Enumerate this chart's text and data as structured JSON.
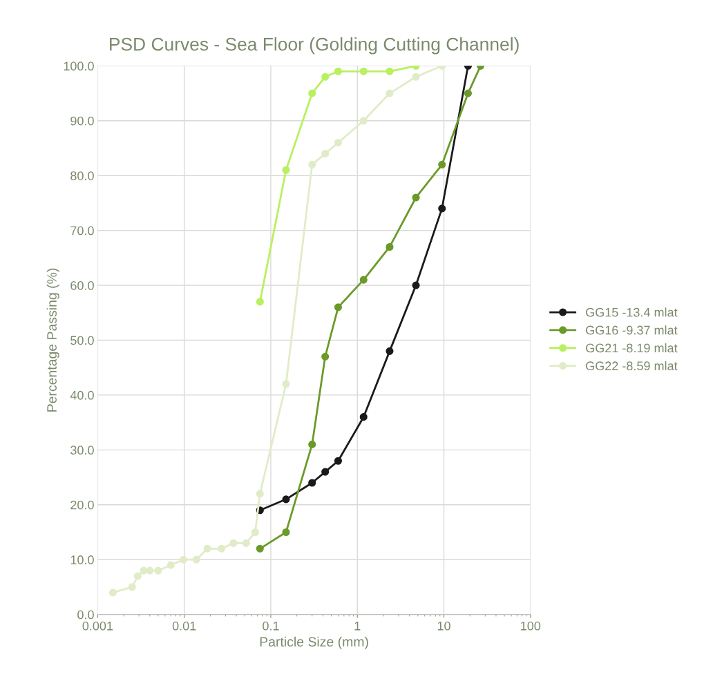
{
  "chart_data": {
    "type": "line",
    "title": "PSD Curves - Sea Floor (Golding Cutting Channel)",
    "xlabel": "Particle Size (mm)",
    "ylabel": "Percentage Passing (%)",
    "log": "x",
    "xlim": [
      0.001,
      100
    ],
    "xticks": [
      0.001,
      0.01,
      0.1,
      1,
      10,
      100
    ],
    "ylim": [
      0,
      100
    ],
    "yticks": [
      {
        "value": 0,
        "label": "0.0"
      },
      {
        "value": 10,
        "label": "10.0"
      },
      {
        "value": 20,
        "label": "20.0"
      },
      {
        "value": 30,
        "label": "30.0"
      },
      {
        "value": 40,
        "label": "40.0"
      },
      {
        "value": 50,
        "label": "50.0"
      },
      {
        "value": 60,
        "label": "60.0"
      },
      {
        "value": 70,
        "label": "70.0"
      },
      {
        "value": 80,
        "label": "80.0"
      },
      {
        "value": 90,
        "label": "90.0"
      },
      {
        "value": 100,
        "label": "100.0"
      }
    ],
    "grid": true,
    "legend": "right",
    "marker": "circle",
    "line_style": "solid",
    "series": [
      {
        "name": "GG15 -13.4 mlat",
        "color": "#1a1a1a",
        "x": [
          0.075,
          0.15,
          0.3,
          0.425,
          0.6,
          1.18,
          2.36,
          4.75,
          9.5,
          19
        ],
        "values": [
          19,
          21,
          24,
          26,
          28,
          36,
          48,
          60,
          74,
          100
        ]
      },
      {
        "name": "GG16 -9.37 mlat",
        "color": "#6b9a2a",
        "x": [
          0.075,
          0.15,
          0.3,
          0.425,
          0.6,
          1.18,
          2.36,
          4.75,
          9.5,
          19,
          26.5
        ],
        "values": [
          12,
          15,
          31,
          47,
          56,
          61,
          67,
          76,
          82,
          95,
          100
        ]
      },
      {
        "name": "GG21 -8.19 mlat",
        "color": "#b9f060",
        "x": [
          0.075,
          0.15,
          0.3,
          0.425,
          0.6,
          1.18,
          2.36,
          4.75
        ],
        "values": [
          57,
          81,
          95,
          98,
          99,
          99,
          99,
          100
        ]
      },
      {
        "name": "GG22 -8.59 mlat",
        "color": "#e0ecc8",
        "x": [
          0.0015,
          0.0025,
          0.0029,
          0.0034,
          0.004,
          0.005,
          0.007,
          0.0098,
          0.0138,
          0.0185,
          0.027,
          0.037,
          0.052,
          0.066,
          0.075,
          0.15,
          0.3,
          0.425,
          0.6,
          1.18,
          2.36,
          4.75,
          9.5
        ],
        "values": [
          4,
          5,
          7,
          8,
          8,
          8,
          9,
          10,
          10,
          12,
          12,
          13,
          13,
          15,
          22,
          42,
          82,
          84,
          86,
          90,
          95,
          98,
          100
        ]
      }
    ]
  }
}
